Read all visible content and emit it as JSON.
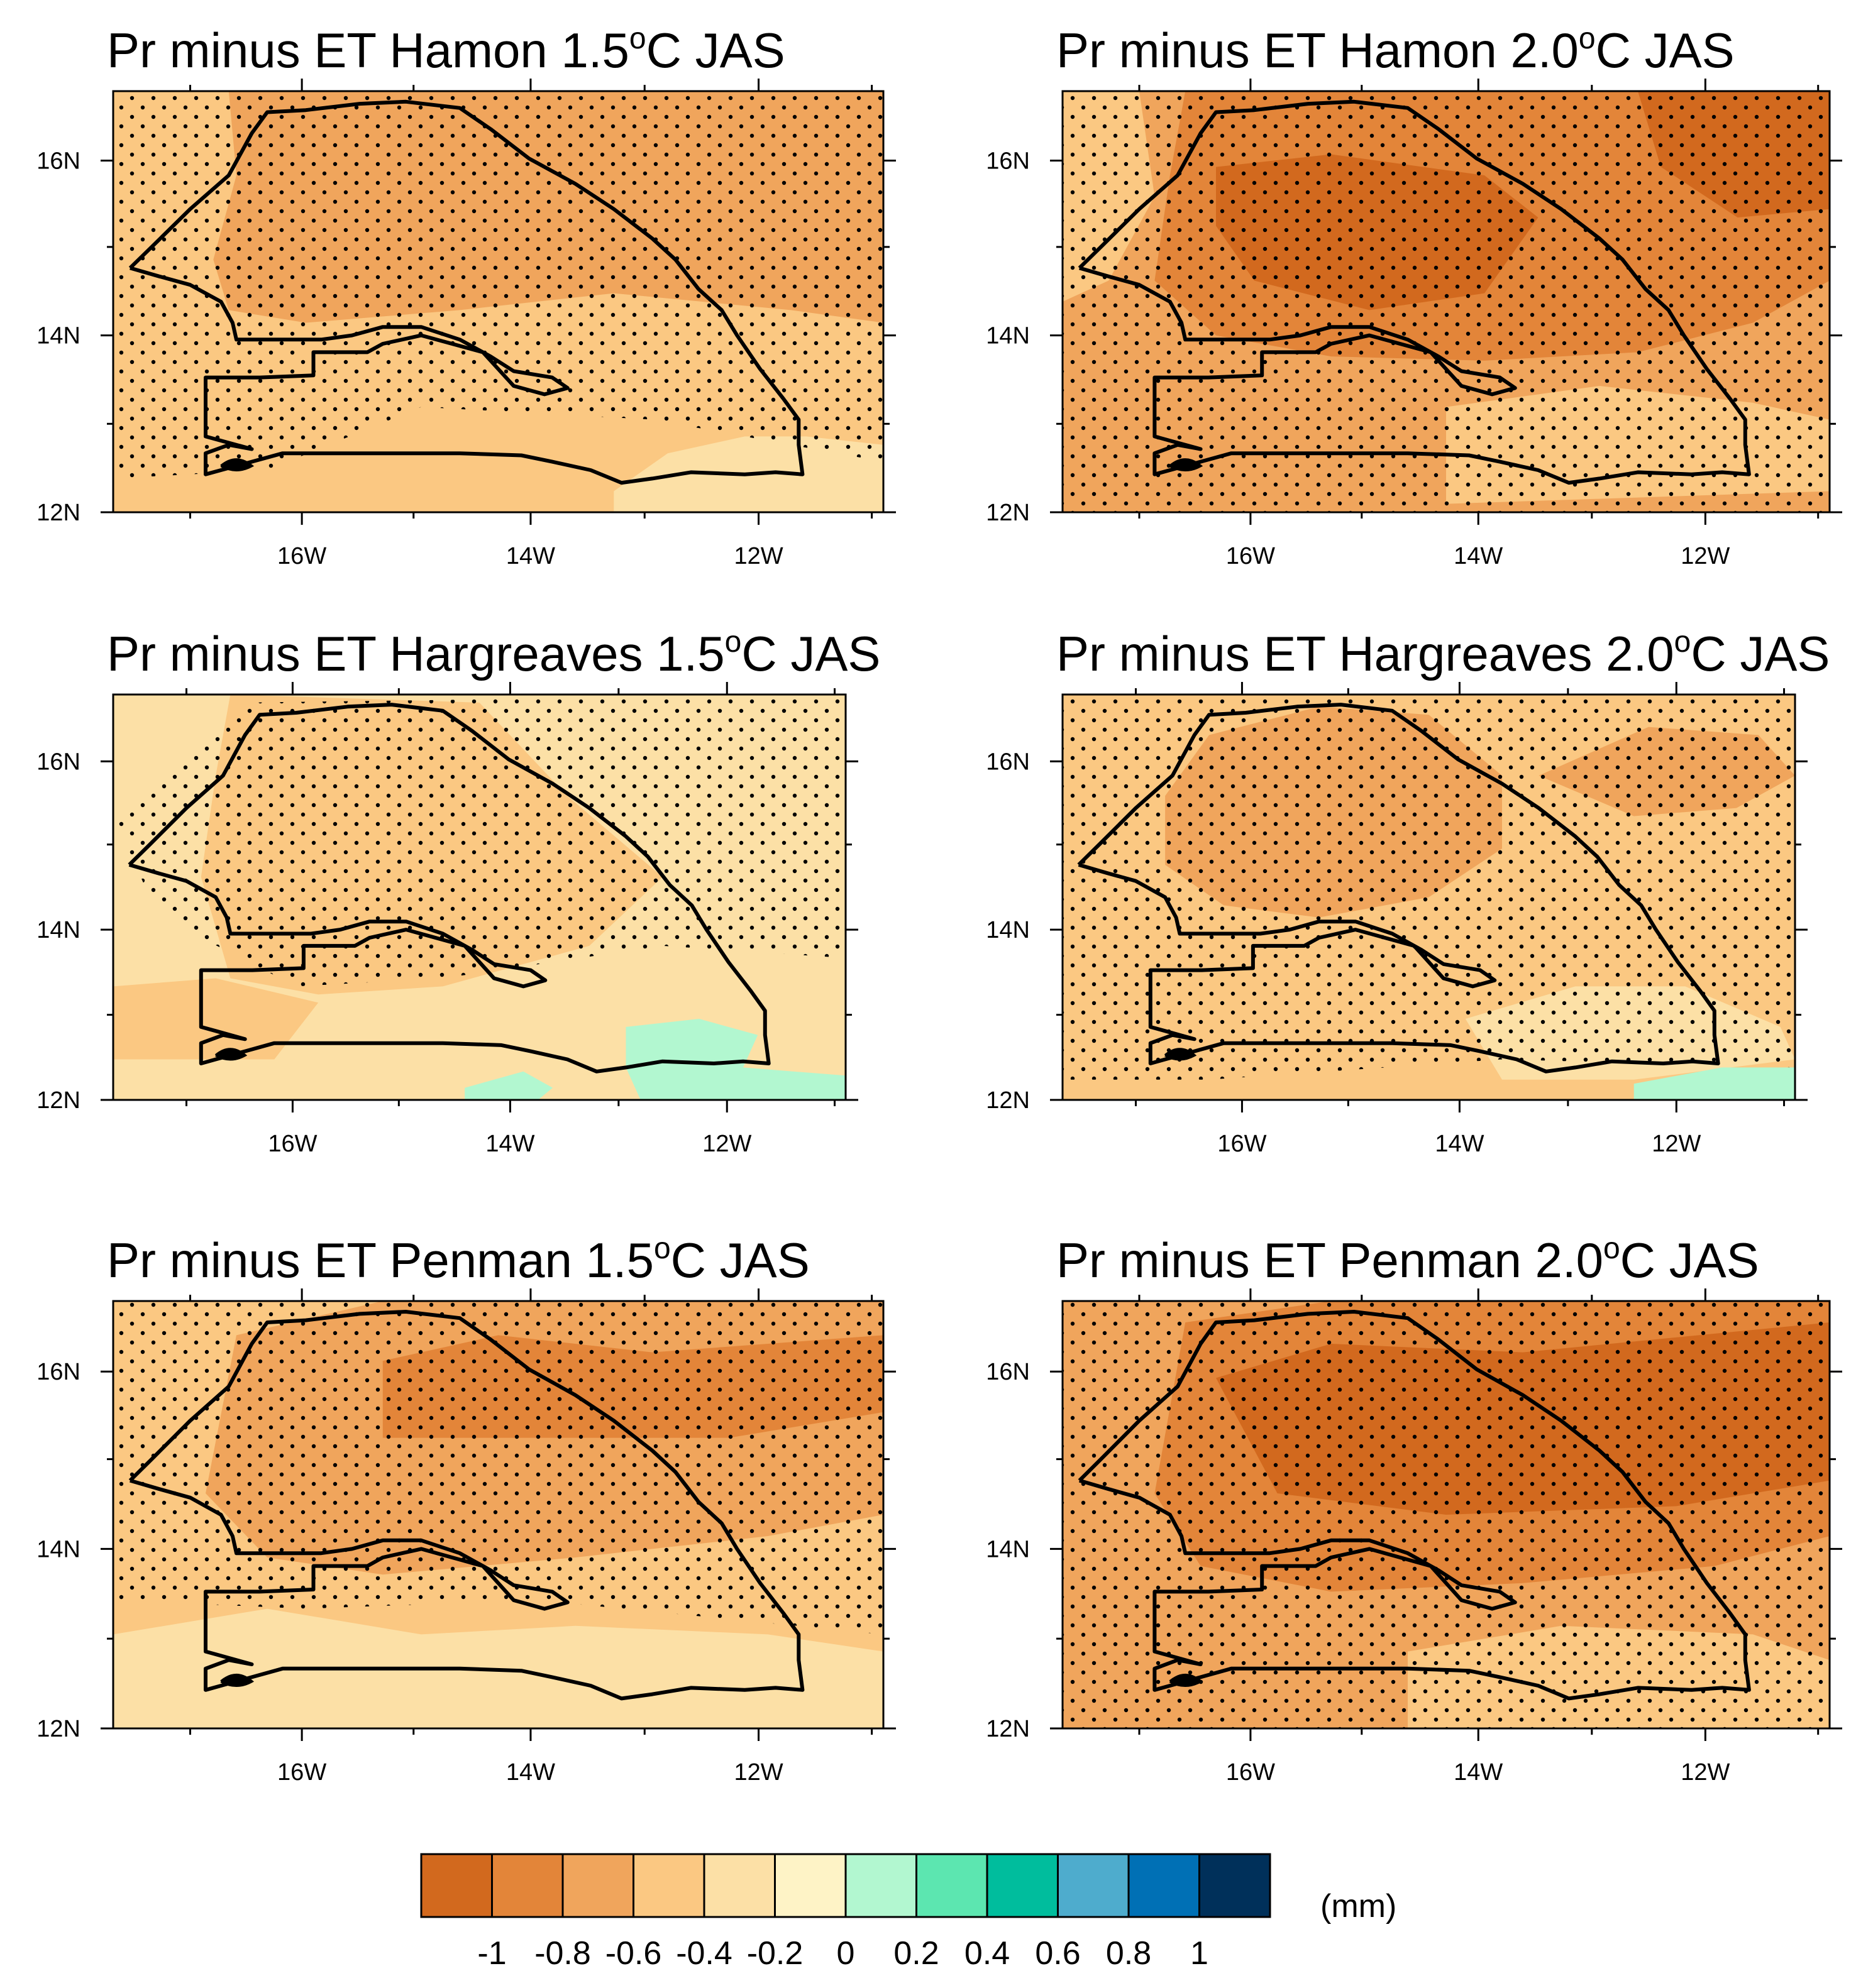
{
  "figure": {
    "description_units": "mm"
  },
  "chart_data": [
    {
      "type": "heatmap",
      "title": "Pr minus ET Hamon 1.5°C JAS",
      "title_prefix": "Pr minus ET Hamon 1.5",
      "title_degree": "o",
      "title_suffix": "C JAS",
      "method": "Hamon",
      "warming_level": "1.5°C",
      "season": "JAS",
      "x_ticks": [
        "16W",
        "14W",
        "12W"
      ],
      "y_ticks": [
        "12N",
        "14N",
        "16N"
      ],
      "xlim": [
        -17.7,
        -11.0
      ],
      "ylim": [
        12.0,
        16.8
      ],
      "regions": [
        {
          "level": -0.4,
          "area": "background"
        },
        {
          "level": -0.6,
          "area": "northern and central Senegal (about 13.8N-16.7N, 17W-11W)"
        },
        {
          "level": -0.2,
          "area": "southeast strip near 12.2N-12.6N, 13W-11W"
        }
      ],
      "stippling": "most of the domain"
    },
    {
      "type": "heatmap",
      "title": "Pr minus ET Hamon 2.0°C JAS",
      "title_prefix": "Pr minus ET Hamon 2.0",
      "title_degree": "o",
      "title_suffix": "C JAS",
      "method": "Hamon",
      "warming_level": "2.0°C",
      "season": "JAS",
      "x_ticks": [
        "16W",
        "14W",
        "12W"
      ],
      "y_ticks": [
        "12N",
        "14N",
        "16N"
      ],
      "xlim": [
        -17.7,
        -11.0
      ],
      "ylim": [
        12.0,
        16.8
      ],
      "regions": [
        {
          "level": -0.6,
          "area": "background"
        },
        {
          "level": -0.4,
          "area": "far west coast and south-central strip"
        },
        {
          "level": -0.8,
          "area": "northern and central Senegal"
        },
        {
          "level": -1.0,
          "area": "core near 14.3N-15.7N, 16.5W-14W and northeast corner"
        }
      ],
      "stippling": "entire domain"
    },
    {
      "type": "heatmap",
      "title": "Pr minus ET Hargreaves 1.5°C JAS",
      "title_prefix": "Pr minus ET Hargreaves 1.5",
      "title_degree": "o",
      "title_suffix": "C JAS",
      "method": "Hargreaves",
      "warming_level": "1.5°C",
      "season": "JAS",
      "x_ticks": [
        "16W",
        "14W",
        "12W"
      ],
      "y_ticks": [
        "12N",
        "14N",
        "16N"
      ],
      "xlim": [
        -17.7,
        -11.0
      ],
      "ylim": [
        12.0,
        16.8
      ],
      "regions": [
        {
          "level": -0.2,
          "area": "background and west coast"
        },
        {
          "level": -0.4,
          "area": "central and northern Senegal"
        },
        {
          "level": 0.2,
          "area": "small patches near 12.0N-12.9N, 13W-11W"
        }
      ],
      "stippling": "northern two-thirds of domain"
    },
    {
      "type": "heatmap",
      "title": "Pr minus ET Hargreaves 2.0°C JAS",
      "title_prefix": "Pr minus ET Hargreaves 2.0",
      "title_degree": "o",
      "title_suffix": "C JAS",
      "method": "Hargreaves",
      "warming_level": "2.0°C",
      "season": "JAS",
      "x_ticks": [
        "16W",
        "14W",
        "12W"
      ],
      "y_ticks": [
        "12N",
        "14N",
        "16N"
      ],
      "xlim": [
        -17.7,
        -11.0
      ],
      "ylim": [
        12.0,
        16.8
      ],
      "regions": [
        {
          "level": -0.4,
          "area": "background"
        },
        {
          "level": -0.6,
          "area": "central Senegal and northeast band"
        },
        {
          "level": -0.2,
          "area": "southeast near 12.3N-13N, 13W-11W"
        },
        {
          "level": 0.2,
          "area": "small patch at southeast edge"
        }
      ],
      "stippling": "most of the domain"
    },
    {
      "type": "heatmap",
      "title": "Pr minus ET Penman 1.5°C JAS",
      "title_prefix": "Pr minus ET Penman 1.5",
      "title_degree": "o",
      "title_suffix": "C JAS",
      "method": "Penman",
      "warming_level": "1.5°C",
      "season": "JAS",
      "x_ticks": [
        "16W",
        "14W",
        "12W"
      ],
      "y_ticks": [
        "12N",
        "14N",
        "16N"
      ],
      "xlim": [
        -17.7,
        -11.0
      ],
      "ylim": [
        12.0,
        16.8
      ],
      "regions": [
        {
          "level": -0.4,
          "area": "background"
        },
        {
          "level": -0.6,
          "area": "central Senegal"
        },
        {
          "level": -0.8,
          "area": "north-central band 15.3N-16.3N, 15W-11W"
        },
        {
          "level": -0.2,
          "area": "southern strip 12.0N-12.8N"
        }
      ],
      "stippling": "northern and central domain"
    },
    {
      "type": "heatmap",
      "title": "Pr minus ET Penman 2.0°C JAS",
      "title_prefix": "Pr minus ET Penman 2.0",
      "title_degree": "o",
      "title_suffix": "C JAS",
      "method": "Penman",
      "warming_level": "2.0°C",
      "season": "JAS",
      "x_ticks": [
        "16W",
        "14W",
        "12W"
      ],
      "y_ticks": [
        "12N",
        "14N",
        "16N"
      ],
      "xlim": [
        -17.7,
        -11.0
      ],
      "ylim": [
        12.0,
        16.8
      ],
      "regions": [
        {
          "level": -0.6,
          "area": "background"
        },
        {
          "level": -0.8,
          "area": "central and northern Senegal"
        },
        {
          "level": -1.0,
          "area": "core 14.5N-16.3N, 16W-11W"
        },
        {
          "level": -0.4,
          "area": "southern strip"
        }
      ],
      "stippling": "entire domain"
    }
  ],
  "colorbar": {
    "labels": [
      "-1",
      "-0.8",
      "-0.6",
      "-0.4",
      "-0.2",
      "0",
      "0.2",
      "0.4",
      "0.6",
      "0.8",
      "1"
    ],
    "colors": [
      "#d2691e",
      "#e38539",
      "#f0a55c",
      "#fbc882",
      "#fce0a6",
      "#fef3c6",
      "#b2f7d0",
      "#5ce6b0",
      "#00bd9d",
      "#4eaccd",
      "#0070b5",
      "#00305a"
    ],
    "units": "(mm)"
  },
  "palette": {
    "-1.0": "#d2691e",
    "-0.8": "#e38539",
    "-0.6": "#f0a55c",
    "-0.4": "#fbc882",
    "-0.2": "#fce0a6",
    "0.0": "#fef3c6",
    "0.2": "#b2f7d0"
  }
}
